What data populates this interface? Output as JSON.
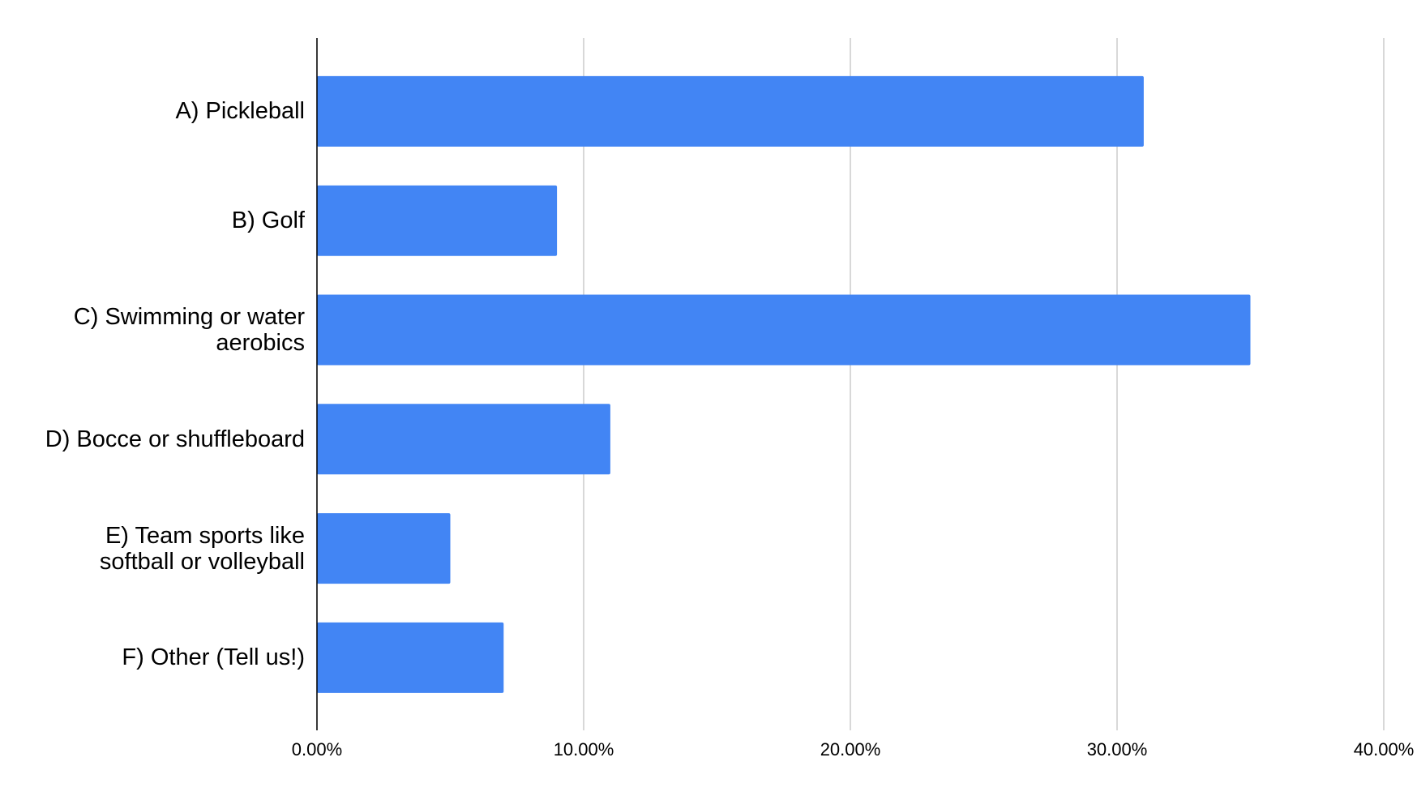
{
  "chart_data": {
    "type": "bar",
    "orientation": "horizontal",
    "categories": [
      "A) Pickleball",
      "B) Golf",
      "C) Swimming or water aerobics",
      "D) Bocce or shuffleboard",
      "E) Team sports like softball or volleyball",
      "F) Other (Tell us!)"
    ],
    "values": [
      31,
      9,
      35,
      11,
      5,
      7
    ],
    "color": "#4285f4",
    "xlim": [
      0,
      40
    ],
    "xticks": [
      {
        "value": 0,
        "label": "0.00%"
      },
      {
        "value": 10,
        "label": "10.00%"
      },
      {
        "value": 20,
        "label": "20.00%"
      },
      {
        "value": 30,
        "label": "30.00%"
      },
      {
        "value": 40,
        "label": "40.00%"
      }
    ],
    "grid": true
  }
}
